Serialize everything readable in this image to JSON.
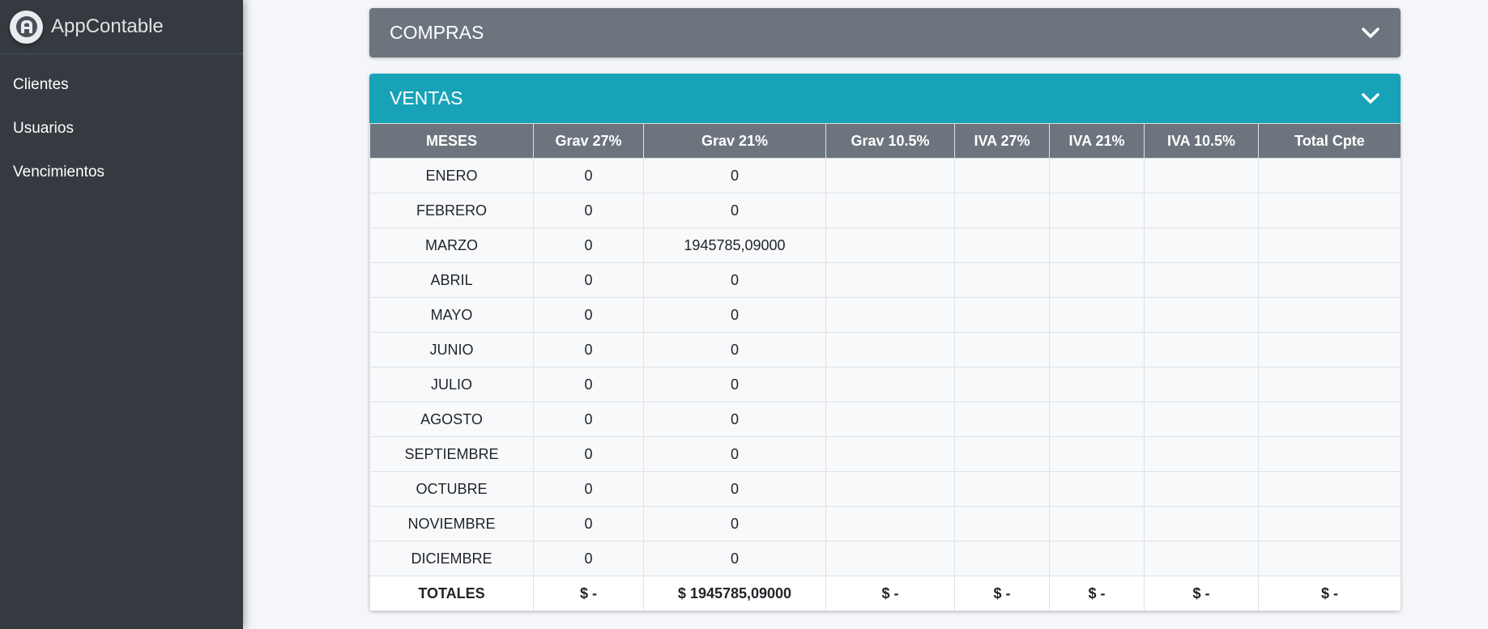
{
  "app": {
    "title": "AppContable"
  },
  "sidebar": {
    "items": [
      {
        "label": "Clientes"
      },
      {
        "label": "Usuarios"
      },
      {
        "label": "Vencimientos"
      }
    ]
  },
  "compras": {
    "title": "COMPRAS",
    "icon": "chevron-down-icon"
  },
  "ventas": {
    "title": "VENTAS",
    "icon": "chevron-down-icon",
    "columns": [
      "MESES",
      "Grav 27%",
      "Grav 21%",
      "Grav 10.5%",
      "IVA 27%",
      "IVA 21%",
      "IVA 10.5%",
      "Total Cpte"
    ],
    "rows": [
      [
        "ENERO",
        "0",
        "0",
        "",
        "",
        "",
        "",
        ""
      ],
      [
        "FEBRERO",
        "0",
        "0",
        "",
        "",
        "",
        "",
        ""
      ],
      [
        "MARZO",
        "0",
        "1945785,09000",
        "",
        "",
        "",
        "",
        ""
      ],
      [
        "ABRIL",
        "0",
        "0",
        "",
        "",
        "",
        "",
        ""
      ],
      [
        "MAYO",
        "0",
        "0",
        "",
        "",
        "",
        "",
        ""
      ],
      [
        "JUNIO",
        "0",
        "0",
        "",
        "",
        "",
        "",
        ""
      ],
      [
        "JULIO",
        "0",
        "0",
        "",
        "",
        "",
        "",
        ""
      ],
      [
        "AGOSTO",
        "0",
        "0",
        "",
        "",
        "",
        "",
        ""
      ],
      [
        "SEPTIEMBRE",
        "0",
        "0",
        "",
        "",
        "",
        "",
        ""
      ],
      [
        "OCTUBRE",
        "0",
        "0",
        "",
        "",
        "",
        "",
        ""
      ],
      [
        "NOVIEMBRE",
        "0",
        "0",
        "",
        "",
        "",
        "",
        ""
      ],
      [
        "DICIEMBRE",
        "0",
        "0",
        "",
        "",
        "",
        "",
        ""
      ]
    ],
    "totals": [
      "TOTALES",
      "$ -",
      "$ 1945785,09000",
      "$ -",
      "$ -",
      "$ -",
      "$ -",
      "$ -"
    ]
  },
  "colors": {
    "sidebar_bg": "#343a40",
    "compras_header": "#6c757d",
    "ventas_header": "#17a2b8",
    "table_header": "#6c757d",
    "page_bg": "#f4f6f9"
  }
}
